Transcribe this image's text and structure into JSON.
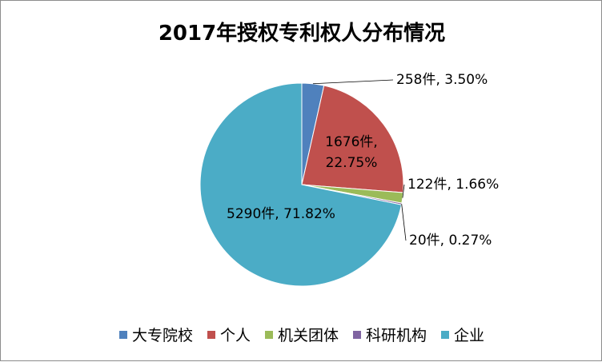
{
  "chart_data": {
    "type": "pie",
    "title": "2017年授权专利权人分布情况",
    "categories": [
      "大专院校",
      "个人",
      "机关团体",
      "科研机构",
      "企业"
    ],
    "values": [
      258,
      1676,
      122,
      20,
      5290
    ],
    "percentages": [
      "3.50%",
      "22.75%",
      "1.66%",
      "0.27%",
      "71.82%"
    ],
    "data_labels": [
      "258件, 3.50%",
      "1676件, 22.75%",
      "122件, 1.66%",
      "20件, 0.27%",
      "5290件, 71.82%"
    ],
    "colors": [
      "#4f81bd",
      "#c0504d",
      "#9bbb59",
      "#8064a2",
      "#4bacc6"
    ],
    "legend_position": "bottom"
  }
}
